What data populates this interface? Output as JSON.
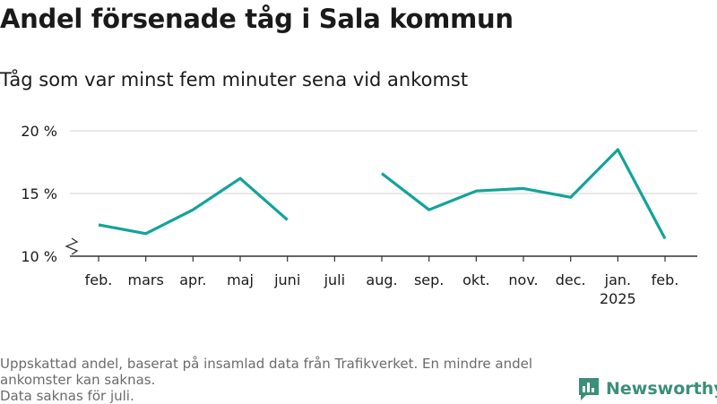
{
  "title": "Andel försenade tåg i Sala kommun",
  "subtitle": "Tåg som var minst fem minuter sena vid ankomst",
  "footer": {
    "line1": "Uppskattad andel, baserat på insamlad data från Trafikverket. En mindre andel",
    "line2": "ankomster kan saknas.",
    "line3": "Data saknas för juli."
  },
  "brand": {
    "name": "Newsworthy",
    "icon": "bar-chart-logo-icon",
    "color": "#3b8f7a"
  },
  "chart_data": {
    "type": "line",
    "categories": [
      "feb.",
      "mars",
      "apr.",
      "maj",
      "juni",
      "juli",
      "aug.",
      "sep.",
      "okt.",
      "nov.",
      "dec.",
      "jan.",
      "feb."
    ],
    "category_sublabels": [
      "",
      "",
      "",
      "",
      "",
      "",
      "",
      "",
      "",
      "",
      "",
      "2025",
      ""
    ],
    "series": [
      {
        "values": [
          12.5,
          11.8,
          13.7,
          16.2,
          12.9,
          null,
          16.6,
          13.7,
          15.2,
          15.4,
          14.7,
          18.5,
          11.4
        ],
        "color": "#12a39a"
      }
    ],
    "yticks": [
      10,
      15,
      20
    ],
    "ytick_labels": [
      "10 %",
      "15 %",
      "20 %"
    ],
    "ylim": [
      10,
      20
    ],
    "axis_break": true,
    "grid": true,
    "colors": {
      "line": "#12a39a",
      "grid": "#d9d9d9",
      "axis": "#333333"
    }
  }
}
